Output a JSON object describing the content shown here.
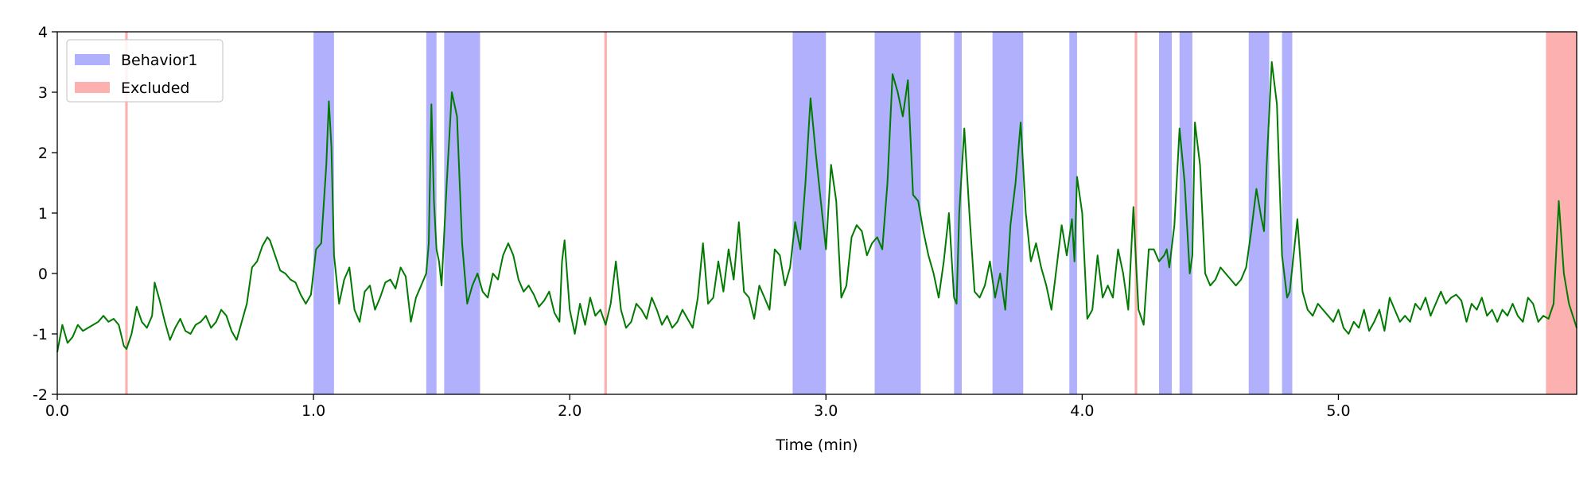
{
  "chart_data": {
    "type": "line",
    "title": "",
    "xlabel": "Time (min)",
    "ylabel": "",
    "xlim": [
      0,
      5.93
    ],
    "ylim": [
      -2,
      4
    ],
    "grid": false,
    "legend_position": "top-left",
    "x_ticks": [
      0,
      1,
      2,
      3,
      4,
      5
    ],
    "x_tick_labels": [
      "0.0",
      "1.0",
      "2.0",
      "3.0",
      "4.0",
      "5.0"
    ],
    "y_ticks": [
      -2,
      -1,
      0,
      1,
      2,
      3,
      4
    ],
    "y_tick_labels": [
      "-2",
      "-1",
      "0",
      "1",
      "2",
      "3",
      "4"
    ],
    "colors": {
      "signal": "#007a00",
      "behavior": "#b0b0fc",
      "excluded": "#fcb0b0"
    },
    "legend": [
      {
        "label": "Behavior1",
        "color": "#b0b0fc"
      },
      {
        "label": "Excluded",
        "color": "#fcb0b0"
      }
    ],
    "behavior1_intervals": [
      [
        1.0,
        1.08
      ],
      [
        1.44,
        1.48
      ],
      [
        1.51,
        1.65
      ],
      [
        2.87,
        3.0
      ],
      [
        3.19,
        3.37
      ],
      [
        3.5,
        3.53
      ],
      [
        3.65,
        3.77
      ],
      [
        3.95,
        3.98
      ],
      [
        4.3,
        4.35
      ],
      [
        4.38,
        4.43
      ],
      [
        4.65,
        4.73
      ],
      [
        4.78,
        4.82
      ]
    ],
    "excluded_intervals": [
      [
        0.265,
        0.275
      ],
      [
        2.135,
        2.145
      ],
      [
        4.205,
        4.215
      ],
      [
        5.81,
        5.93
      ]
    ],
    "series": [
      {
        "name": "signal",
        "x": [
          0.0,
          0.02,
          0.04,
          0.06,
          0.08,
          0.1,
          0.12,
          0.14,
          0.16,
          0.18,
          0.2,
          0.22,
          0.24,
          0.26,
          0.27,
          0.29,
          0.31,
          0.33,
          0.35,
          0.37,
          0.38,
          0.4,
          0.42,
          0.44,
          0.46,
          0.48,
          0.5,
          0.52,
          0.54,
          0.56,
          0.58,
          0.6,
          0.62,
          0.64,
          0.66,
          0.68,
          0.7,
          0.72,
          0.74,
          0.76,
          0.78,
          0.8,
          0.82,
          0.83,
          0.85,
          0.87,
          0.89,
          0.91,
          0.93,
          0.95,
          0.97,
          0.99,
          1.01,
          1.03,
          1.05,
          1.06,
          1.07,
          1.08,
          1.1,
          1.12,
          1.14,
          1.16,
          1.18,
          1.2,
          1.22,
          1.24,
          1.26,
          1.28,
          1.3,
          1.32,
          1.34,
          1.36,
          1.38,
          1.4,
          1.42,
          1.44,
          1.45,
          1.46,
          1.47,
          1.48,
          1.49,
          1.5,
          1.52,
          1.54,
          1.56,
          1.58,
          1.6,
          1.62,
          1.64,
          1.66,
          1.68,
          1.7,
          1.72,
          1.74,
          1.76,
          1.78,
          1.8,
          1.82,
          1.84,
          1.86,
          1.88,
          1.9,
          1.92,
          1.94,
          1.96,
          1.97,
          1.98,
          2.0,
          2.02,
          2.04,
          2.06,
          2.08,
          2.1,
          2.12,
          2.14,
          2.16,
          2.18,
          2.2,
          2.22,
          2.24,
          2.26,
          2.28,
          2.3,
          2.32,
          2.34,
          2.36,
          2.38,
          2.4,
          2.42,
          2.44,
          2.46,
          2.48,
          2.5,
          2.52,
          2.54,
          2.56,
          2.58,
          2.6,
          2.62,
          2.64,
          2.66,
          2.68,
          2.7,
          2.72,
          2.74,
          2.76,
          2.78,
          2.8,
          2.82,
          2.84,
          2.86,
          2.88,
          2.9,
          2.92,
          2.94,
          2.96,
          2.98,
          3.0,
          3.02,
          3.04,
          3.06,
          3.08,
          3.1,
          3.12,
          3.14,
          3.16,
          3.18,
          3.2,
          3.22,
          3.24,
          3.26,
          3.28,
          3.3,
          3.32,
          3.34,
          3.36,
          3.38,
          3.4,
          3.42,
          3.44,
          3.46,
          3.48,
          3.5,
          3.51,
          3.52,
          3.54,
          3.56,
          3.58,
          3.6,
          3.62,
          3.64,
          3.66,
          3.68,
          3.7,
          3.72,
          3.74,
          3.76,
          3.78,
          3.8,
          3.82,
          3.84,
          3.86,
          3.88,
          3.9,
          3.92,
          3.94,
          3.96,
          3.97,
          3.98,
          4.0,
          4.02,
          4.04,
          4.06,
          4.08,
          4.1,
          4.12,
          4.14,
          4.16,
          4.18,
          4.2,
          4.21,
          4.22,
          4.24,
          4.26,
          4.28,
          4.3,
          4.32,
          4.33,
          4.34,
          4.36,
          4.38,
          4.4,
          4.42,
          4.43,
          4.44,
          4.46,
          4.48,
          4.5,
          4.52,
          4.54,
          4.56,
          4.58,
          4.6,
          4.62,
          4.64,
          4.66,
          4.68,
          4.7,
          4.71,
          4.72,
          4.74,
          4.76,
          4.78,
          4.8,
          4.81,
          4.82,
          4.84,
          4.86,
          4.88,
          4.9,
          4.92,
          4.94,
          4.96,
          4.98,
          5.0,
          5.02,
          5.04,
          5.06,
          5.08,
          5.1,
          5.12,
          5.14,
          5.16,
          5.18,
          5.2,
          5.22,
          5.24,
          5.26,
          5.28,
          5.3,
          5.32,
          5.34,
          5.36,
          5.38,
          5.4,
          5.42,
          5.44,
          5.46,
          5.48,
          5.5,
          5.52,
          5.54,
          5.56,
          5.58,
          5.6,
          5.62,
          5.64,
          5.66,
          5.68,
          5.7,
          5.72,
          5.74,
          5.76,
          5.78,
          5.8,
          5.82,
          5.84,
          5.86,
          5.88,
          5.9,
          5.93
        ],
        "y": [
          -1.3,
          -0.85,
          -1.15,
          -1.05,
          -0.85,
          -0.95,
          -0.9,
          -0.85,
          -0.8,
          -0.7,
          -0.8,
          -0.75,
          -0.85,
          -1.2,
          -1.25,
          -1.0,
          -0.55,
          -0.8,
          -0.9,
          -0.7,
          -0.15,
          -0.45,
          -0.8,
          -1.1,
          -0.9,
          -0.75,
          -0.95,
          -1.0,
          -0.85,
          -0.8,
          -0.7,
          -0.9,
          -0.8,
          -0.6,
          -0.7,
          -0.95,
          -1.1,
          -0.8,
          -0.5,
          0.1,
          0.2,
          0.45,
          0.6,
          0.55,
          0.3,
          0.05,
          0.0,
          -0.1,
          -0.15,
          -0.35,
          -0.5,
          -0.35,
          0.4,
          0.5,
          1.8,
          2.85,
          2.1,
          0.3,
          -0.5,
          -0.1,
          0.1,
          -0.6,
          -0.8,
          -0.3,
          -0.2,
          -0.6,
          -0.4,
          -0.15,
          -0.1,
          -0.25,
          0.1,
          -0.05,
          -0.8,
          -0.4,
          -0.2,
          0.0,
          0.5,
          2.8,
          1.2,
          0.4,
          0.2,
          -0.2,
          1.5,
          3.0,
          2.6,
          0.5,
          -0.5,
          -0.2,
          0.0,
          -0.3,
          -0.4,
          0.0,
          -0.1,
          0.3,
          0.5,
          0.3,
          -0.1,
          -0.3,
          -0.2,
          -0.35,
          -0.55,
          -0.45,
          -0.3,
          -0.65,
          -0.8,
          0.2,
          0.55,
          -0.6,
          -1.0,
          -0.5,
          -0.85,
          -0.4,
          -0.7,
          -0.6,
          -0.85,
          -0.5,
          0.2,
          -0.6,
          -0.9,
          -0.8,
          -0.5,
          -0.6,
          -0.75,
          -0.4,
          -0.6,
          -0.85,
          -0.7,
          -0.9,
          -0.8,
          -0.6,
          -0.75,
          -0.9,
          -0.4,
          0.5,
          -0.5,
          -0.4,
          0.2,
          -0.3,
          0.4,
          -0.1,
          0.85,
          -0.3,
          -0.4,
          -0.75,
          -0.2,
          -0.4,
          -0.6,
          0.4,
          0.3,
          -0.2,
          0.1,
          0.85,
          0.4,
          1.5,
          2.9,
          2.0,
          1.2,
          0.4,
          1.8,
          1.2,
          -0.4,
          -0.2,
          0.6,
          0.8,
          0.7,
          0.3,
          0.5,
          0.6,
          0.4,
          1.5,
          3.3,
          3.0,
          2.6,
          3.2,
          1.3,
          1.2,
          0.7,
          0.3,
          0.0,
          -0.4,
          0.2,
          1.0,
          -0.4,
          -0.5,
          1.0,
          2.4,
          1.0,
          -0.3,
          -0.4,
          -0.2,
          0.2,
          -0.4,
          0.0,
          -0.6,
          0.8,
          1.5,
          2.5,
          1.0,
          0.2,
          0.5,
          0.1,
          -0.2,
          -0.6,
          0.1,
          0.8,
          0.3,
          0.9,
          0.2,
          1.6,
          1.0,
          -0.75,
          -0.6,
          0.3,
          -0.4,
          -0.2,
          -0.4,
          0.4,
          0.0,
          -0.6,
          1.1,
          0.2,
          -0.6,
          -0.85,
          0.4,
          0.4,
          0.2,
          0.3,
          0.4,
          0.1,
          0.8,
          2.4,
          1.5,
          0.0,
          0.3,
          2.5,
          1.8,
          0.0,
          -0.2,
          -0.1,
          0.1,
          0.0,
          -0.1,
          -0.2,
          -0.1,
          0.1,
          0.7,
          1.4,
          0.9,
          0.7,
          1.8,
          3.5,
          2.8,
          0.3,
          -0.4,
          -0.3,
          0.1,
          0.9,
          -0.3,
          -0.6,
          -0.7,
          -0.5,
          -0.6,
          -0.7,
          -0.8,
          -0.6,
          -0.9,
          -1.0,
          -0.8,
          -0.9,
          -0.6,
          -0.95,
          -0.8,
          -0.6,
          -0.95,
          -0.4,
          -0.6,
          -0.8,
          -0.7,
          -0.8,
          -0.5,
          -0.6,
          -0.4,
          -0.7,
          -0.5,
          -0.3,
          -0.5,
          -0.4,
          -0.35,
          -0.45,
          -0.8,
          -0.5,
          -0.6,
          -0.4,
          -0.7,
          -0.6,
          -0.8,
          -0.6,
          -0.7,
          -0.5,
          -0.7,
          -0.8,
          -0.4,
          -0.5,
          -0.8,
          -0.7,
          -0.75,
          -0.5,
          1.2,
          0.0,
          -0.5,
          -0.9
        ]
      }
    ]
  }
}
